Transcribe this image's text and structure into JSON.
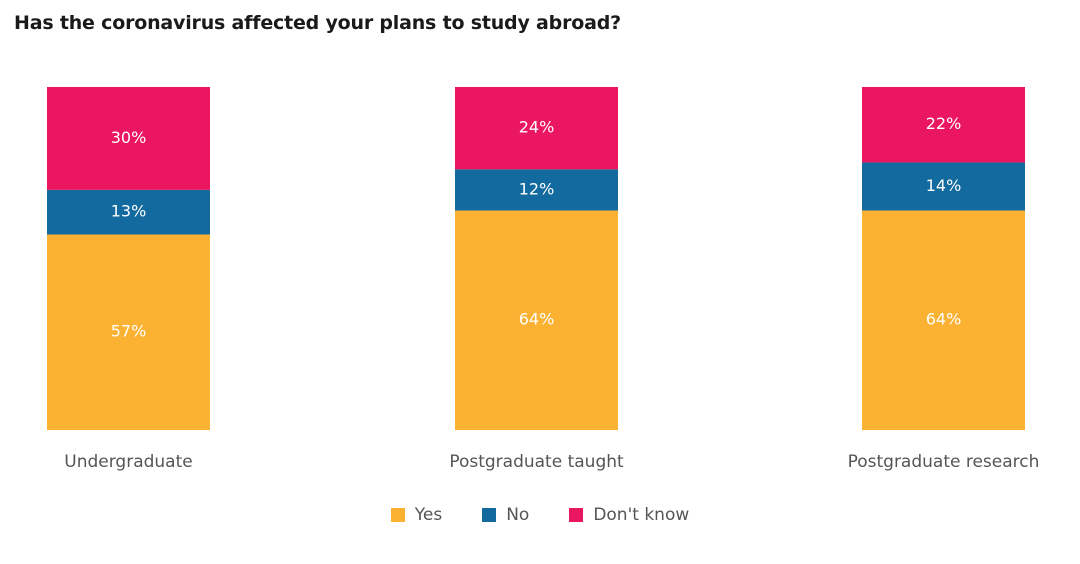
{
  "chart_data": {
    "type": "bar",
    "stacked": true,
    "title": "Has the coronavirus affected your plans to study abroad?",
    "categories": [
      "Undergraduate",
      "Postgraduate taught",
      "Postgraduate research"
    ],
    "series": [
      {
        "name": "Yes",
        "color": "#FBB131",
        "values": [
          57,
          64,
          64
        ],
        "labels": [
          "57%",
          "64%",
          "64%"
        ]
      },
      {
        "name": "No",
        "color": "#126A9E",
        "values": [
          13,
          12,
          14
        ],
        "labels": [
          "13%",
          "12%",
          "14%"
        ]
      },
      {
        "name": "Don't know",
        "color": "#EB1660",
        "values": [
          30,
          24,
          22
        ],
        "labels": [
          "30%",
          "24%",
          "22%"
        ]
      }
    ],
    "ylim": [
      0,
      100
    ],
    "grid": false,
    "legend_position": "bottom"
  }
}
